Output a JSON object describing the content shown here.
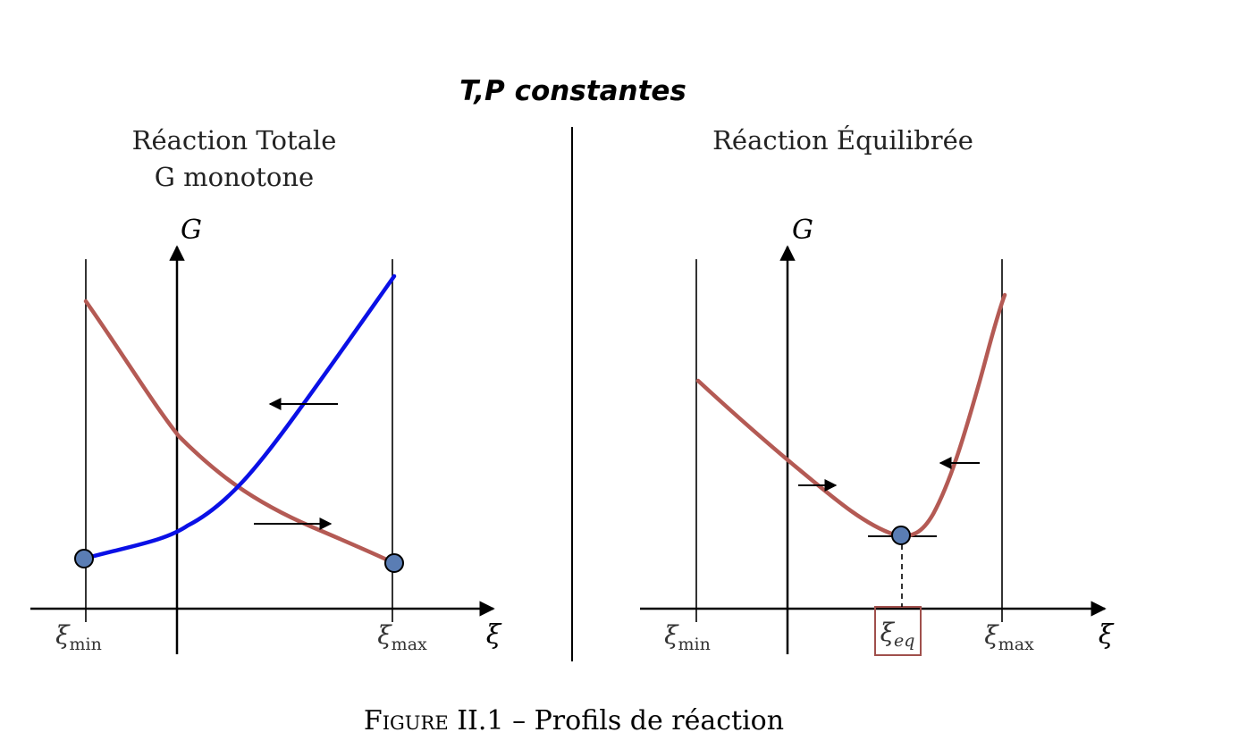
{
  "figure": {
    "main_title": "T,P constantes",
    "caption_prefix": "Figure",
    "caption_number": "II.1",
    "caption_sep": "–",
    "caption_text": "Profils de réaction"
  },
  "left_panel": {
    "title_line1": "Réaction Totale",
    "title_line2": "G monotone",
    "y_axis_label": "G",
    "x_axis_label": "ξ",
    "tick_min_base": "ξ",
    "tick_min_sub": "min",
    "tick_max_base": "ξ",
    "tick_max_sub": "max",
    "curve_colors": {
      "decreasing": "#b45a54",
      "increasing": "#0a10e6"
    }
  },
  "right_panel": {
    "title": "Réaction Équilibrée",
    "y_axis_label": "G",
    "x_axis_label": "ξ",
    "tick_min_base": "ξ",
    "tick_min_sub": "min",
    "tick_eq_base": "ξ",
    "tick_eq_sub": "eq",
    "tick_max_base": "ξ",
    "tick_max_sub": "max",
    "curve_color": "#b45a54",
    "eq_box_color": "#a0504c"
  },
  "colors": {
    "point_fill": "#5a7db4",
    "point_stroke": "#000000"
  }
}
